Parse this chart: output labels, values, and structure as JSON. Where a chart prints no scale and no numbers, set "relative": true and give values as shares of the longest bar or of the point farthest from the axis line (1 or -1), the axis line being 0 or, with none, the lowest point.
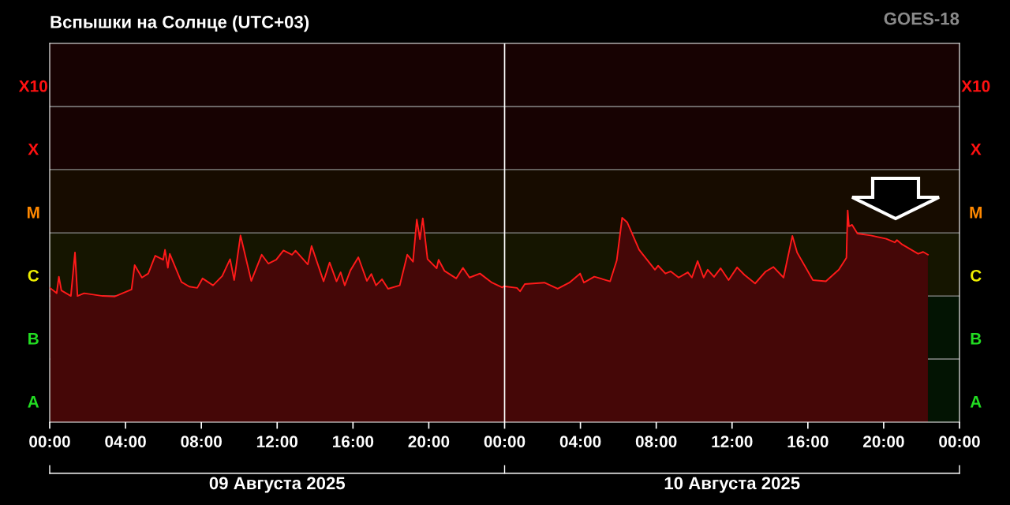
{
  "chart_data": {
    "type": "area",
    "title": "Вспышки на Солнце (UTC+03)",
    "annotations": [
      "GOES-18",
      "09 Августа 2025",
      "10 Августа 2025"
    ],
    "relative": true,
    "x": [
      "2025-08-09T00:01",
      "2025-08-09T00:22",
      "2025-08-09T00:29",
      "2025-08-09T00:37",
      "2025-08-09T01:07",
      "2025-08-09T01:20",
      "2025-08-09T01:28",
      "2025-08-09T01:49",
      "2025-08-09T02:47",
      "2025-08-09T03:25",
      "2025-08-09T04:19",
      "2025-08-09T04:29",
      "2025-08-09T04:52",
      "2025-08-09T05:12",
      "2025-08-09T05:34",
      "2025-08-09T05:59",
      "2025-08-09T06:05",
      "2025-08-09T06:14",
      "2025-08-09T06:20",
      "2025-08-09T06:57",
      "2025-08-09T07:22",
      "2025-08-09T07:47",
      "2025-08-09T08:04",
      "2025-08-09T08:37",
      "2025-08-09T09:06",
      "2025-08-09T09:31",
      "2025-08-09T09:44",
      "2025-08-09T10:04",
      "2025-08-09T10:38",
      "2025-08-09T11:11",
      "2025-08-09T11:32",
      "2025-08-09T11:57",
      "2025-08-09T12:20",
      "2025-08-09T12:47",
      "2025-08-09T12:58",
      "2025-08-09T13:37",
      "2025-08-09T13:49",
      "2025-08-09T14:27",
      "2025-08-09T14:46",
      "2025-08-09T15:08",
      "2025-08-09T15:21",
      "2025-08-09T15:34",
      "2025-08-09T15:52",
      "2025-08-09T16:17",
      "2025-08-09T16:44",
      "2025-08-09T16:58",
      "2025-08-09T17:13",
      "2025-08-09T17:32",
      "2025-08-09T17:51",
      "2025-08-09T18:28",
      "2025-08-09T18:52",
      "2025-08-09T19:10",
      "2025-08-09T19:22",
      "2025-08-09T19:32",
      "2025-08-09T19:41",
      "2025-08-09T19:56",
      "2025-08-09T20:25",
      "2025-08-09T20:31",
      "2025-08-09T20:50",
      "2025-08-09T21:27",
      "2025-08-09T21:48",
      "2025-08-09T22:09",
      "2025-08-09T22:42",
      "2025-08-09T23:20",
      "2025-08-09T23:53",
      "2025-08-09T23:57",
      "2025-08-10T00:39",
      "2025-08-10T00:49",
      "2025-08-10T01:04",
      "2025-08-10T02:06",
      "2025-08-10T02:48",
      "2025-08-10T03:25",
      "2025-08-10T03:59",
      "2025-08-10T04:11",
      "2025-08-10T04:44",
      "2025-08-10T05:34",
      "2025-08-10T05:55",
      "2025-08-10T06:12",
      "2025-08-10T06:28",
      "2025-08-10T07:06",
      "2025-08-10T07:56",
      "2025-08-10T08:06",
      "2025-08-10T08:29",
      "2025-08-10T08:46",
      "2025-08-10T09:11",
      "2025-08-10T09:40",
      "2025-08-10T09:53",
      "2025-08-10T10:11",
      "2025-08-10T10:30",
      "2025-08-10T10:43",
      "2025-08-10T11:03",
      "2025-08-10T11:24",
      "2025-08-10T11:49",
      "2025-08-10T12:16",
      "2025-08-10T12:39",
      "2025-08-10T13:13",
      "2025-08-10T13:46",
      "2025-08-10T14:11",
      "2025-08-10T14:43",
      "2025-08-10T15:11",
      "2025-08-10T15:26",
      "2025-08-10T16:16",
      "2025-08-10T16:57",
      "2025-08-10T17:38",
      "2025-08-10T18:02",
      "2025-08-10T18:06",
      "2025-08-10T18:10",
      "2025-08-10T18:20",
      "2025-08-10T18:37",
      "2025-08-10T19:19",
      "2025-08-10T20:08",
      "2025-08-10T20:35",
      "2025-08-10T20:42",
      "2025-08-10T20:59",
      "2025-08-10T21:49",
      "2025-08-10T22:05",
      "2025-08-10T22:20"
    ],
    "series": [
      {
        "color": "#ff1a1a",
        "values": [
          0.634,
          0.609,
          0.687,
          0.622,
          0.596,
          0.801,
          0.596,
          0.609,
          0.596,
          0.593,
          0.627,
          0.742,
          0.683,
          0.702,
          0.786,
          0.767,
          0.814,
          0.729,
          0.795,
          0.662,
          0.64,
          0.634,
          0.679,
          0.646,
          0.69,
          0.77,
          0.671,
          0.882,
          0.667,
          0.791,
          0.749,
          0.767,
          0.811,
          0.791,
          0.81,
          0.745,
          0.832,
          0.665,
          0.754,
          0.665,
          0.708,
          0.646,
          0.717,
          0.779,
          0.667,
          0.7,
          0.646,
          0.675,
          0.63,
          0.646,
          0.791,
          0.758,
          0.957,
          0.864,
          0.963,
          0.77,
          0.727,
          0.767,
          0.714,
          0.679,
          0.729,
          0.683,
          0.702,
          0.659,
          0.636,
          0.642,
          0.634,
          0.618,
          0.652,
          0.659,
          0.63,
          0.659,
          0.702,
          0.659,
          0.687,
          0.665,
          0.764,
          0.965,
          0.944,
          0.814,
          0.72,
          0.739,
          0.702,
          0.712,
          0.683,
          0.708,
          0.683,
          0.761,
          0.683,
          0.72,
          0.686,
          0.727,
          0.671,
          0.731,
          0.696,
          0.655,
          0.711,
          0.733,
          0.683,
          0.88,
          0.801,
          0.671,
          0.665,
          0.72,
          0.776,
          1,
          0.925,
          0.932,
          0.891,
          0.882,
          0.866,
          0.849,
          0.86,
          0.839,
          0.795,
          0.804,
          0.791
        ]
      }
    ],
    "xlim": [
      "2025-08-09T00:00",
      "2025-08-11T00:00"
    ],
    "xticks": [
      {
        "value": "2025-08-09T00:00",
        "label": "00:00"
      },
      {
        "value": "2025-08-09T04:00",
        "label": "04:00"
      },
      {
        "value": "2025-08-09T08:00",
        "label": "08:00"
      },
      {
        "value": "2025-08-09T12:00",
        "label": "12:00"
      },
      {
        "value": "2025-08-09T16:00",
        "label": "16:00"
      },
      {
        "value": "2025-08-09T20:00",
        "label": "20:00"
      },
      {
        "value": "2025-08-10T00:00",
        "label": "00:00"
      },
      {
        "value": "2025-08-10T04:00",
        "label": "04:00"
      },
      {
        "value": "2025-08-10T08:00",
        "label": "08:00"
      },
      {
        "value": "2025-08-10T12:00",
        "label": "12:00"
      },
      {
        "value": "2025-08-10T16:00",
        "label": "16:00"
      },
      {
        "value": "2025-08-10T20:00",
        "label": "20:00"
      },
      {
        "value": "2025-08-11T00:00",
        "label": "00:00"
      }
    ],
    "bands": [
      {
        "axis": "y",
        "from": 0,
        "to": 0.298,
        "label": "A",
        "color": "#22dd22"
      },
      {
        "axis": "y",
        "from": 0.298,
        "to": 0.596,
        "label": "B",
        "color": "#22dd22"
      },
      {
        "axis": "y",
        "from": 0.596,
        "to": 0.894,
        "label": "C",
        "color": "#eeee00"
      },
      {
        "axis": "y",
        "from": 0.894,
        "to": 1.193,
        "label": "M",
        "color": "#ff8800"
      },
      {
        "axis": "y",
        "from": 1.193,
        "to": 1.491,
        "label": "X",
        "color": "#ff1111"
      },
      {
        "axis": "y",
        "from": 1.491,
        "to": 1.789,
        "label": "X10",
        "color": "#ff1111"
      }
    ],
    "ref_lines": [
      {
        "axis": "x",
        "value": "2025-08-10T00:00",
        "color": "#ffffff"
      }
    ]
  }
}
